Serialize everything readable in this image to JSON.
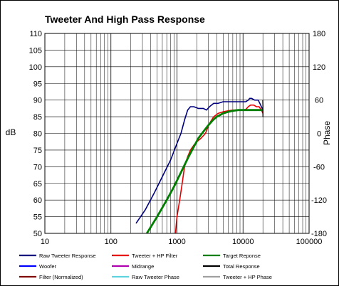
{
  "chart_data": {
    "type": "line",
    "title": "Tweeter  And High Pass Response",
    "xlabel": "",
    "ylabel": "dB",
    "y2label": "Phase",
    "xscale": "log",
    "xlim": [
      10,
      100000
    ],
    "ylim": [
      50,
      110
    ],
    "y2lim": [
      -180,
      180
    ],
    "grid": true,
    "legend_position": "bottom",
    "x_ticks": [
      "10",
      "100",
      "1000",
      "10000",
      "100000"
    ],
    "y_ticks": [
      "50",
      "55",
      "60",
      "65",
      "70",
      "75",
      "80",
      "85",
      "90",
      "95",
      "100",
      "105",
      "110"
    ],
    "y2_ticks": [
      "-180",
      "-120",
      "-60",
      "0",
      "60",
      "120",
      "180"
    ],
    "legend": [
      {
        "name": "Raw Tweeter Response",
        "color": "#00007f"
      },
      {
        "name": "Tweeter + HP Filter",
        "color": "#e60000"
      },
      {
        "name": "Target Reponse",
        "color": "#007f00"
      },
      {
        "name": "Woofer",
        "color": "#0000ff"
      },
      {
        "name": "Midrange",
        "color": "#b000b0"
      },
      {
        "name": "Total Response",
        "color": "#000000"
      },
      {
        "name": "Filter (Normalized)",
        "color": "#800000"
      },
      {
        "name": "Raw Tweeter Phase",
        "color": "#5fd4e0"
      },
      {
        "name": "Tweeter + HP Phase",
        "color": "#a0a0a0"
      }
    ],
    "series": [
      {
        "name": "Raw Tweeter Response",
        "color": "#00007f",
        "width": 1.6,
        "x": [
          240,
          330,
          450,
          600,
          800,
          1000,
          1150,
          1300,
          1450,
          1600,
          1800,
          2100,
          2500,
          2800,
          3100,
          3600,
          4200,
          5000,
          6000,
          7000,
          8000,
          9000,
          10000,
          11000,
          12000,
          12600,
          13500,
          15000,
          17000,
          18500,
          20000
        ],
        "y": [
          53,
          57,
          62,
          67,
          72,
          77,
          80,
          84,
          87,
          88,
          88,
          87.5,
          87.5,
          87,
          88,
          89,
          89,
          89.5,
          89.5,
          89.5,
          89.5,
          89.5,
          89.5,
          89.5,
          90,
          90.5,
          90.5,
          90,
          90,
          88.5,
          87
        ]
      },
      {
        "name": "Tweeter + HP Filter",
        "color": "#e60000",
        "width": 1.6,
        "x": [
          950,
          1000,
          1100,
          1200,
          1300,
          1450,
          1600,
          1800,
          2000,
          2300,
          2700,
          3100,
          3600,
          4200,
          5000,
          6000,
          7000,
          8000,
          9000,
          10000,
          11000,
          12000,
          13000,
          14500,
          16000,
          17500,
          19000,
          20000
        ],
        "y": [
          50,
          55,
          60,
          65,
          70,
          73,
          75,
          76.5,
          77.5,
          78.5,
          80,
          83,
          85,
          86,
          86.5,
          86.8,
          87,
          87,
          87,
          87,
          87.2,
          88,
          88.5,
          88.5,
          88,
          88,
          87,
          86
        ]
      },
      {
        "name": "Target Reponse",
        "color": "#007f00",
        "width": 2.8,
        "x": [
          350,
          500,
          700,
          900,
          1100,
          1300,
          1500,
          1800,
          2100,
          2500,
          3000,
          3500,
          4000,
          5000,
          6000,
          7000,
          8500,
          10000,
          12000,
          14000,
          17000,
          20000
        ],
        "y": [
          50,
          55,
          60,
          64,
          67.5,
          70.5,
          73,
          76,
          78.5,
          80.5,
          82.5,
          84,
          85,
          86,
          86.5,
          86.8,
          87,
          87,
          87,
          87,
          87,
          87
        ]
      },
      {
        "name": "Total Response",
        "color": "#000000",
        "width": 1.4,
        "x": [
          19900,
          20000,
          20000
        ],
        "y": [
          90,
          88.5,
          85
        ]
      }
    ]
  }
}
